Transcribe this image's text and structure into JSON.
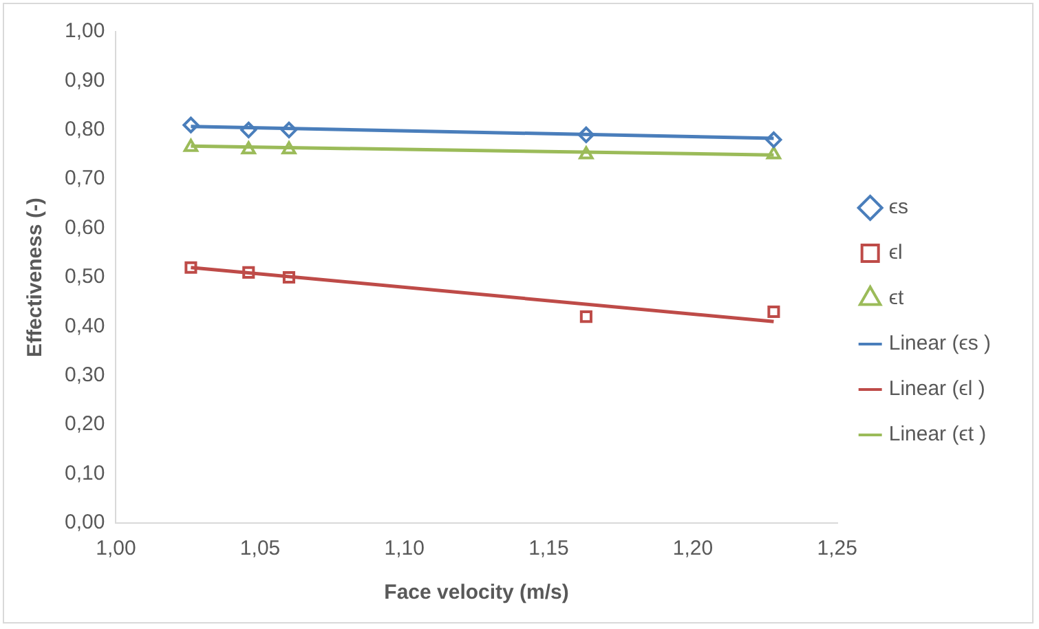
{
  "chart_data": {
    "type": "scatter",
    "xlabel": "Face velocity (m/s)",
    "ylabel": "Effectiveness (-)",
    "xlim": [
      1.0,
      1.25
    ],
    "xticks": [
      {
        "value": 1.0,
        "label": "1,00"
      },
      {
        "value": 1.05,
        "label": "1,05"
      },
      {
        "value": 1.1,
        "label": "1,10"
      },
      {
        "value": 1.15,
        "label": "1,15"
      },
      {
        "value": 1.2,
        "label": "1,20"
      },
      {
        "value": 1.25,
        "label": "1,25"
      }
    ],
    "ylim": [
      0,
      1
    ],
    "yticks": [
      {
        "value": 0,
        "label": "0,00"
      },
      {
        "value": 0.1,
        "label": "0,10"
      },
      {
        "value": 0.2,
        "label": "0,20"
      },
      {
        "value": 0.3,
        "label": "0,30"
      },
      {
        "value": 0.4,
        "label": "0,40"
      },
      {
        "value": 0.5,
        "label": "0,50"
      },
      {
        "value": 0.6,
        "label": "0,60"
      },
      {
        "value": 0.7,
        "label": "0,70"
      },
      {
        "value": 0.8,
        "label": "0,80"
      },
      {
        "value": 0.9,
        "label": "0,90"
      },
      {
        "value": 1,
        "label": "1,00"
      }
    ],
    "grid": false,
    "legend": "right",
    "series": [
      {
        "name": "ϵs",
        "marker": "diamond",
        "color": "#4a7ebb",
        "x": [
          1.026,
          1.046,
          1.06,
          1.163,
          1.228
        ],
        "values": [
          0.81,
          0.8,
          0.8,
          0.79,
          0.78
        ]
      },
      {
        "name": "ϵl",
        "marker": "square",
        "color": "#be4b48",
        "x": [
          1.026,
          1.046,
          1.06,
          1.163,
          1.228
        ],
        "values": [
          0.52,
          0.51,
          0.5,
          0.42,
          0.43
        ]
      },
      {
        "name": "ϵt",
        "marker": "triangle",
        "color": "#9bbb59",
        "x": [
          1.026,
          1.046,
          1.06,
          1.163,
          1.228
        ],
        "values": [
          0.765,
          0.76,
          0.76,
          0.75,
          0.75
        ]
      },
      {
        "name": "Linear (ϵs )",
        "type": "line",
        "marker": "none",
        "color": "#4a7ebb",
        "x": [
          1.026,
          1.228
        ],
        "values": [
          0.807,
          0.783
        ]
      },
      {
        "name": "Linear (ϵl )",
        "type": "line",
        "marker": "none",
        "color": "#be4b48",
        "x": [
          1.026,
          1.228
        ],
        "values": [
          0.52,
          0.41
        ]
      },
      {
        "name": "Linear (ϵt )",
        "type": "line",
        "marker": "none",
        "color": "#9bbb59",
        "x": [
          1.026,
          1.228
        ],
        "values": [
          0.767,
          0.749
        ]
      }
    ]
  }
}
